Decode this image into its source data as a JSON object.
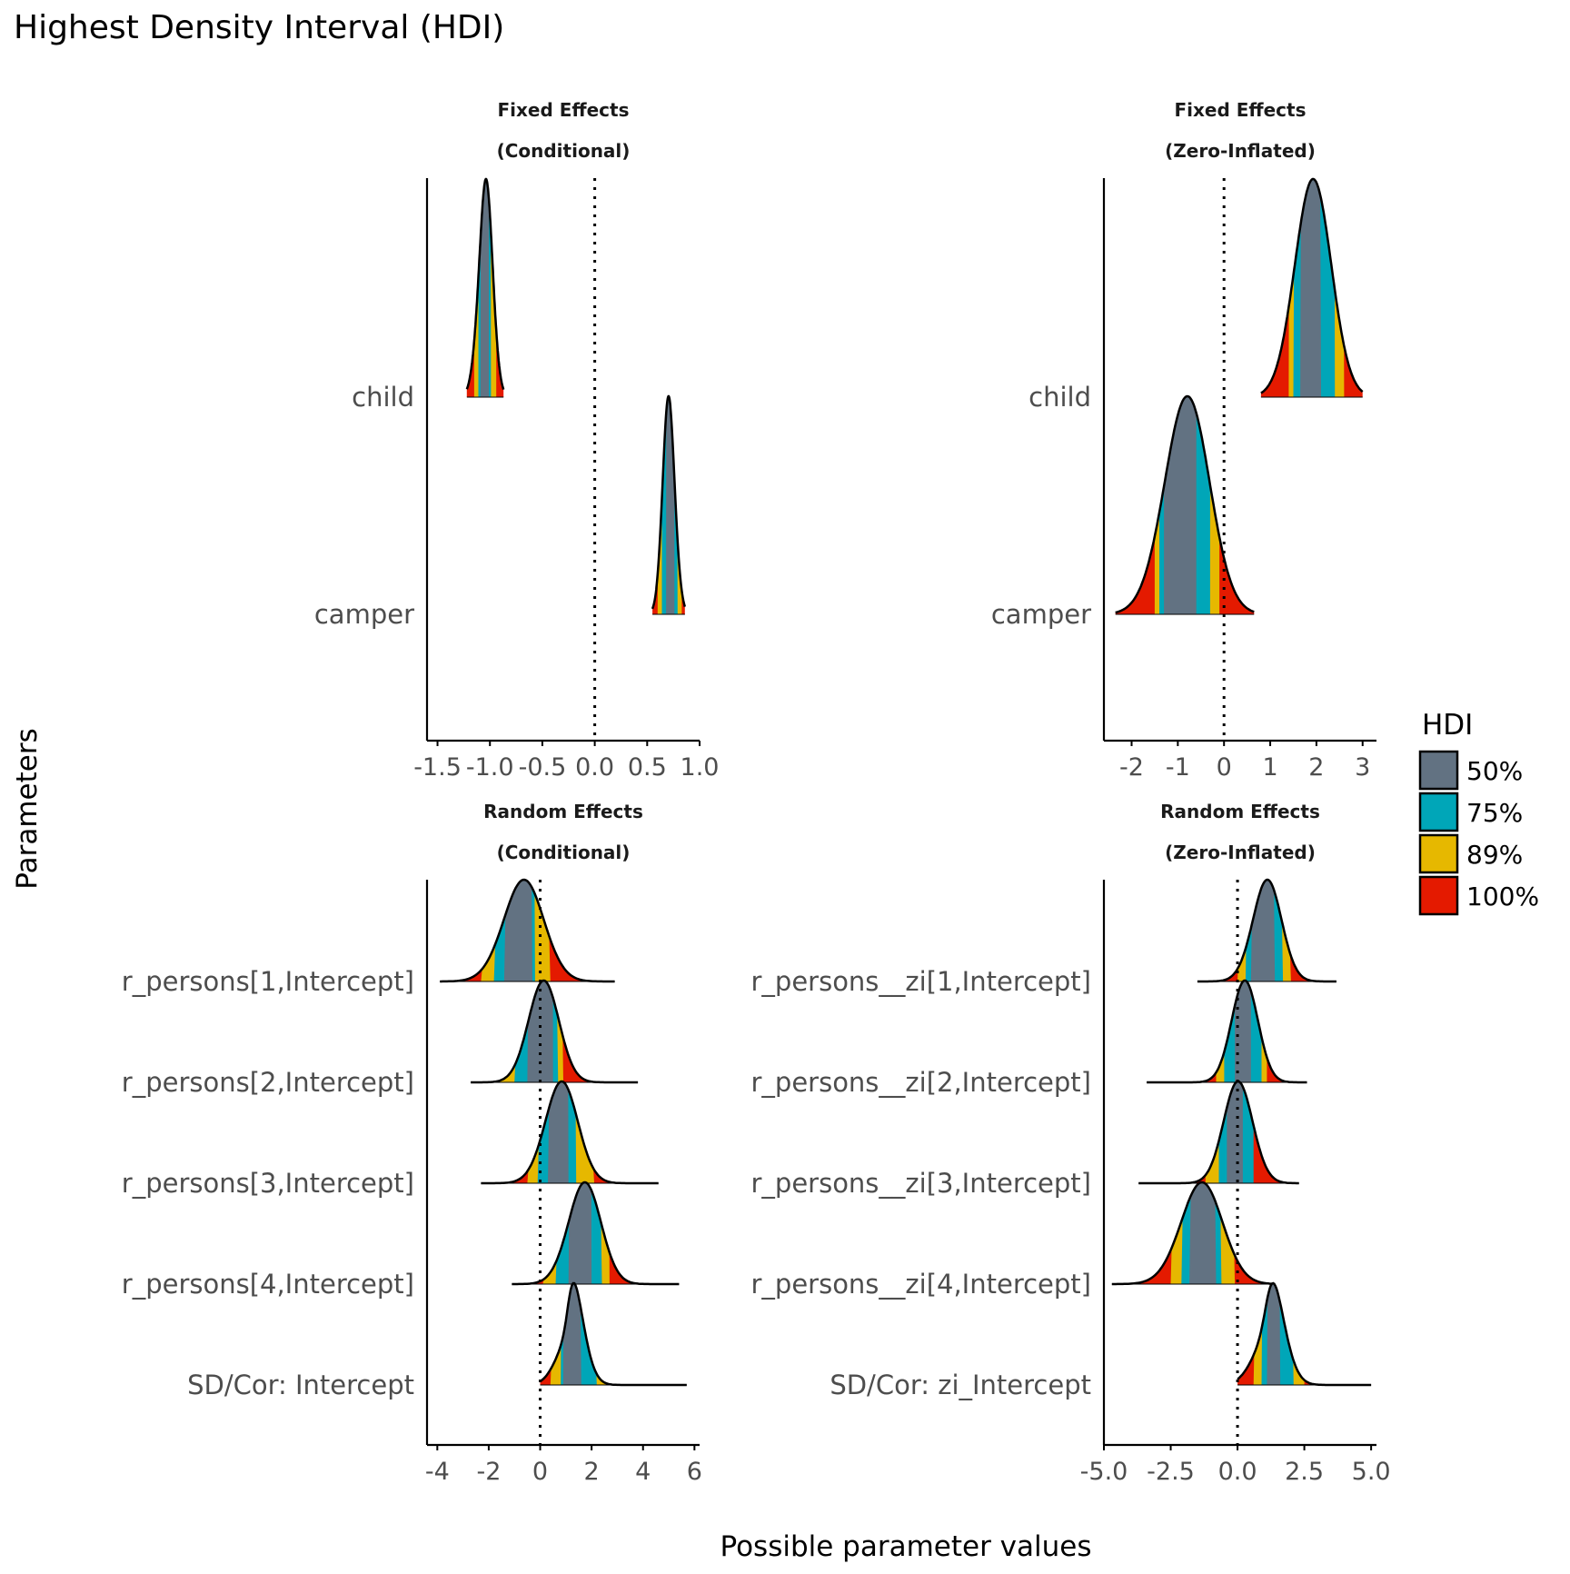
{
  "chart_data": {
    "type": "ridgeline",
    "title": "Highest Density Interval (HDI)",
    "xlabel": "Possible parameter values",
    "ylabel": "Parameters",
    "legend": {
      "title": "HDI",
      "placement": "right",
      "entries": [
        {
          "label": "50%",
          "color": "#627282"
        },
        {
          "label": "75%",
          "color": "#00a6b8"
        },
        {
          "label": "89%",
          "color": "#e6b800"
        },
        {
          "label": "100%",
          "color": "#e41a00"
        }
      ]
    },
    "reference_line_x": 0,
    "panels": [
      {
        "title_line1": "Fixed Effects",
        "title_line2": "(Conditional)",
        "xlim": [
          -1.6,
          1.0
        ],
        "xticks": [
          -1.5,
          -1.0,
          -0.5,
          0.0,
          0.5,
          1.0
        ],
        "xtick_labels": [
          "-1.5",
          "-1.0",
          "-0.5",
          "0.0",
          "0.5",
          "1.0"
        ],
        "parameters": [
          {
            "name": "child",
            "peak": -1.06,
            "sd": 0.07,
            "skew": 0.5,
            "hdi": {
              "100": [
                -1.22,
                -0.87
              ],
              "89": [
                -1.15,
                -0.94
              ],
              "75": [
                -1.11,
                -0.99
              ],
              "50": [
                -1.09,
                -1.01
              ]
            }
          },
          {
            "name": "camper",
            "peak": 0.72,
            "sd": 0.06,
            "skew": -0.4,
            "hdi": {
              "100": [
                0.55,
                0.86
              ],
              "89": [
                0.6,
                0.83
              ],
              "75": [
                0.64,
                0.79
              ],
              "50": [
                0.68,
                0.76
              ]
            }
          }
        ]
      },
      {
        "title_line1": "Fixed Effects",
        "title_line2": "(Zero-Inflated)",
        "xlim": [
          -2.6,
          3.3
        ],
        "xticks": [
          -2,
          -1,
          0,
          1,
          2,
          3
        ],
        "xtick_labels": [
          "-2",
          "-1",
          "0",
          "1",
          "2",
          "3"
        ],
        "parameters": [
          {
            "name": "child",
            "peak": 1.87,
            "sd": 0.4,
            "skew": 0.2,
            "hdi": {
              "100": [
                0.8,
                3.0
              ],
              "89": [
                1.4,
                2.6
              ],
              "75": [
                1.5,
                2.4
              ],
              "50": [
                1.65,
                2.1
              ]
            }
          },
          {
            "name": "camper",
            "peak": -0.9,
            "sd": 0.5,
            "skew": 0.3,
            "hdi": {
              "100": [
                -2.35,
                0.65
              ],
              "89": [
                -1.5,
                -0.1
              ],
              "75": [
                -1.4,
                -0.3
              ],
              "50": [
                -1.3,
                -0.6
              ]
            }
          }
        ]
      },
      {
        "title_line1": "Random Effects",
        "title_line2": "(Conditional)",
        "xlim": [
          -4.4,
          6.2
        ],
        "xticks": [
          -4,
          -2,
          0,
          2,
          4,
          6
        ],
        "xtick_labels": [
          "-4",
          "-2",
          "0",
          "2",
          "4",
          "6"
        ],
        "parameters": [
          {
            "name": "r_persons[1,Intercept]",
            "peak": -0.8,
            "sd": 0.8,
            "skew": 0.3,
            "hdi": {
              "100": [
                -3.9,
                2.9
              ],
              "89": [
                -2.3,
                0.4
              ],
              "75": [
                -1.8,
                -0.2
              ],
              "50": [
                -1.4,
                -0.3
              ]
            }
          },
          {
            "name": "r_persons[2,Intercept]",
            "peak": 0.05,
            "sd": 0.6,
            "skew": 0.2,
            "hdi": {
              "100": [
                -2.7,
                3.8
              ],
              "89": [
                -1.6,
                0.9
              ],
              "75": [
                -1.0,
                0.7
              ],
              "50": [
                -0.5,
                0.5
              ]
            }
          },
          {
            "name": "r_persons[3,Intercept]",
            "peak": 0.7,
            "sd": 0.65,
            "skew": 0.3,
            "hdi": {
              "100": [
                -2.3,
                4.6
              ],
              "89": [
                -0.5,
                2.1
              ],
              "75": [
                -0.1,
                1.4
              ],
              "50": [
                0.3,
                1.1
              ]
            }
          },
          {
            "name": "r_persons[4,Intercept]",
            "peak": 1.6,
            "sd": 0.65,
            "skew": 0.3,
            "hdi": {
              "100": [
                -1.1,
                5.4
              ],
              "89": [
                0.1,
                2.7
              ],
              "75": [
                0.6,
                2.4
              ],
              "50": [
                1.1,
                2.0
              ]
            }
          },
          {
            "name": "SD/Cor:  Intercept",
            "peak": 1.1,
            "sd": 0.5,
            "skew": 1.4,
            "hdi": {
              "100": [
                0.0,
                5.7
              ],
              "89": [
                0.4,
                2.6
              ],
              "75": [
                0.8,
                2.2
              ],
              "50": [
                0.9,
                1.6
              ]
            }
          }
        ]
      },
      {
        "title_line1": "Random Effects",
        "title_line2": "(Zero-Inflated)",
        "xlim": [
          -5.0,
          5.2
        ],
        "xticks": [
          -5.0,
          -2.5,
          0.0,
          2.5,
          5.0
        ],
        "xtick_labels": [
          "-5.0",
          "-2.5",
          "0.0",
          "2.5",
          "5.0"
        ],
        "parameters": [
          {
            "name": "r_persons__zi[1,Intercept]",
            "peak": 1.0,
            "sd": 0.55,
            "skew": 0.3,
            "hdi": {
              "100": [
                -1.5,
                3.7
              ],
              "89": [
                0.0,
                2.0
              ],
              "75": [
                0.3,
                1.7
              ],
              "50": [
                0.5,
                1.4
              ]
            }
          },
          {
            "name": "r_persons__zi[2,Intercept]",
            "peak": 0.2,
            "sd": 0.5,
            "skew": 0.2,
            "hdi": {
              "100": [
                -3.4,
                2.6
              ],
              "89": [
                -0.8,
                1.1
              ],
              "75": [
                -0.5,
                0.9
              ],
              "50": [
                -0.1,
                0.5
              ]
            }
          },
          {
            "name": "r_persons__zi[3,Intercept]",
            "peak": 0.1,
            "sd": 0.55,
            "skew": -0.2,
            "hdi": {
              "100": [
                -3.7,
                2.3
              ],
              "89": [
                -1.2,
                0.5
              ],
              "75": [
                -0.7,
                0.6
              ],
              "50": [
                -0.4,
                0.2
              ]
            }
          },
          {
            "name": "r_persons__zi[4,Intercept]",
            "peak": -1.5,
            "sd": 0.8,
            "skew": 0.3,
            "hdi": {
              "100": [
                -4.7,
                1.4
              ],
              "89": [
                -2.5,
                -0.1
              ],
              "75": [
                -2.1,
                -0.6
              ],
              "50": [
                -1.8,
                -0.8
              ]
            }
          },
          {
            "name": "SD/Cor:  zi_Intercept",
            "peak": 1.1,
            "sd": 0.55,
            "skew": 1.2,
            "hdi": {
              "100": [
                0.0,
                5.0
              ],
              "89": [
                0.6,
                2.5
              ],
              "75": [
                0.9,
                2.1
              ],
              "50": [
                1.1,
                1.6
              ]
            }
          }
        ]
      }
    ]
  }
}
